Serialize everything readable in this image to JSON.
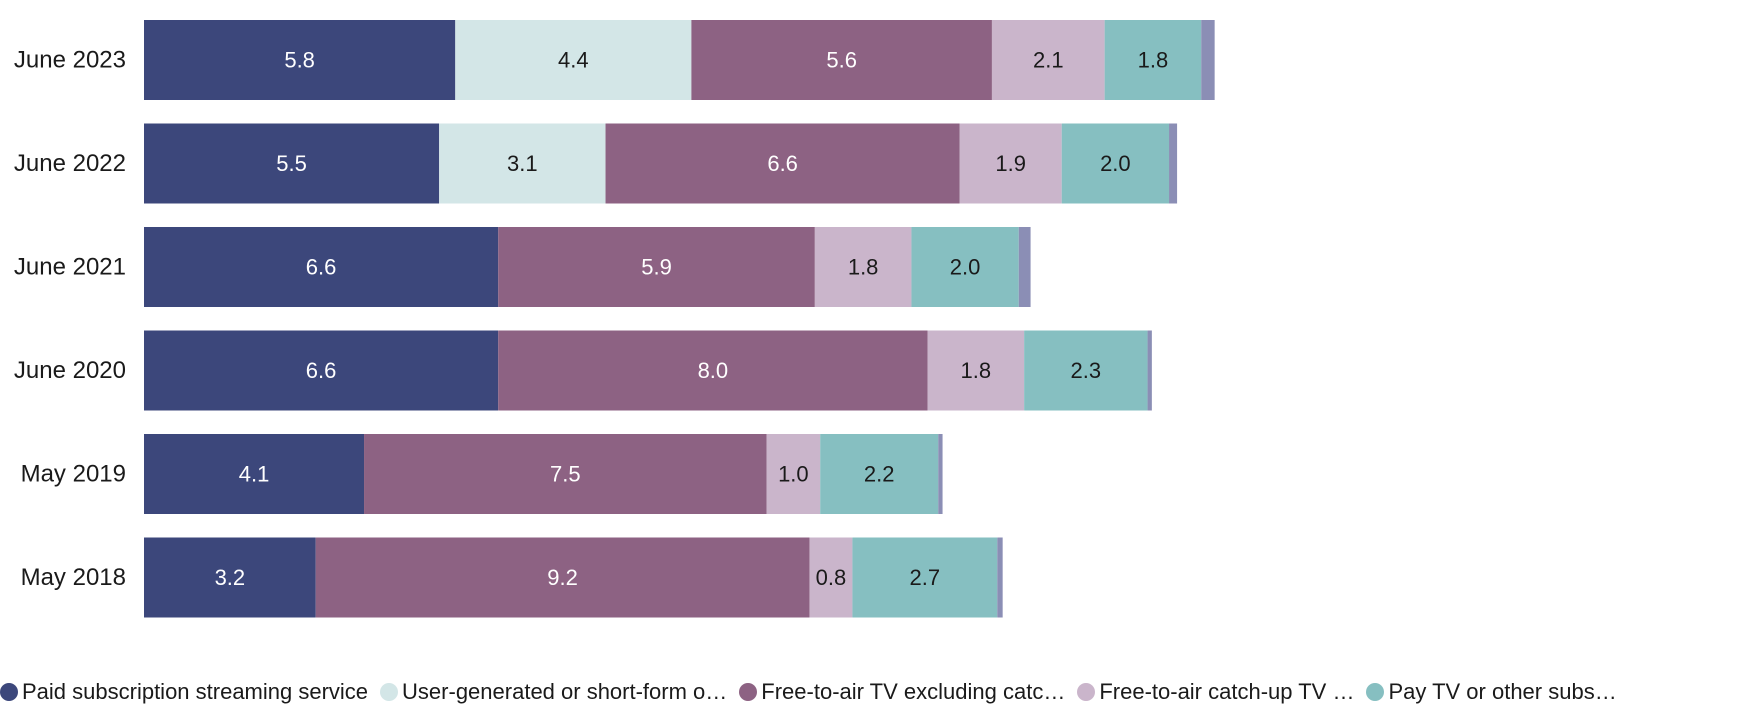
{
  "chart_data": {
    "type": "bar",
    "orientation": "horizontal",
    "stacked": true,
    "categories": [
      "June 2023",
      "June 2022",
      "June 2021",
      "June 2020",
      "May 2019",
      "May 2018"
    ],
    "series": [
      {
        "name": "Paid subscription streaming service",
        "color": "#3c477b",
        "label_color": "#ffffff",
        "values": [
          5.8,
          5.5,
          6.6,
          6.6,
          4.1,
          3.2
        ]
      },
      {
        "name": "User-generated or short-form o…",
        "color": "#d3e6e7",
        "label_color": "#1a1a1a",
        "values": [
          4.4,
          3.1,
          0,
          0,
          0,
          0
        ]
      },
      {
        "name": "Free-to-air TV excluding catc…",
        "color": "#8d6283",
        "label_color": "#ffffff",
        "values": [
          5.6,
          6.6,
          5.9,
          8.0,
          7.5,
          9.2
        ]
      },
      {
        "name": "Free-to-air catch-up TV …",
        "color": "#cab5cb",
        "label_color": "#1a1a1a",
        "values": [
          2.1,
          1.9,
          1.8,
          1.8,
          1.0,
          0.8
        ]
      },
      {
        "name": "Pay TV or other subs…",
        "color": "#86bfc1",
        "label_color": "#1a1a1a",
        "values": [
          1.8,
          2.0,
          2.0,
          2.3,
          2.2,
          2.7
        ]
      },
      {
        "color": "#8b8eb5",
        "label_color": "#1a1a1a",
        "show_labels": false,
        "values": [
          0.25,
          0.15,
          0.22,
          0.08,
          0.08,
          0.1
        ]
      }
    ],
    "xlim": [
      0,
      30
    ],
    "grid": false,
    "legend_position": "bottom-left"
  }
}
